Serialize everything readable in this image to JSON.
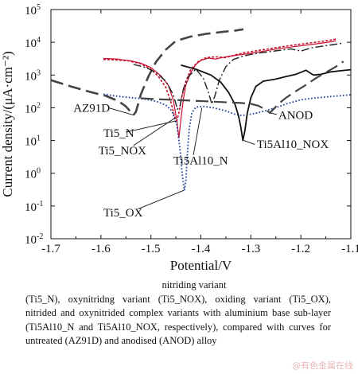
{
  "chart_data": {
    "type": "line",
    "xlabel": "Potential/V",
    "ylabel": "Current density/(μA·cm⁻²)",
    "xlim": [
      -1.7,
      -1.1
    ],
    "ylim_log10": [
      -2,
      5
    ],
    "y_scale": "log",
    "x_ticks": [
      "-1.7",
      "-1.6",
      "-1.5",
      "-1.4",
      "-1.3",
      "-1.2",
      "-1.1"
    ],
    "y_ticks": [
      {
        "base": "10",
        "exp": "5"
      },
      {
        "base": "10",
        "exp": "4"
      },
      {
        "base": "10",
        "exp": "3"
      },
      {
        "base": "10",
        "exp": "2"
      },
      {
        "base": "10",
        "exp": "1"
      },
      {
        "base": "10",
        "exp": "0"
      },
      {
        "base": "10",
        "exp": "-1"
      },
      {
        "base": "10",
        "exp": "-2"
      }
    ],
    "series": [
      {
        "name": "AZ91D",
        "color": "#444444",
        "dash": "16,7",
        "width": 2.6,
        "points": [
          [
            -1.7,
            700
          ],
          [
            -1.66,
            450
          ],
          [
            -1.62,
            300
          ],
          [
            -1.59,
            230
          ],
          [
            -1.565,
            160
          ],
          [
            -1.55,
            110
          ],
          [
            -1.535,
            60
          ],
          [
            -1.53,
            75
          ],
          [
            -1.52,
            260
          ],
          [
            -1.505,
            900
          ],
          [
            -1.49,
            2500
          ],
          [
            -1.47,
            6000
          ],
          [
            -1.45,
            11000
          ],
          [
            -1.42,
            15000
          ],
          [
            -1.39,
            18000
          ],
          [
            -1.36,
            20500
          ],
          [
            -1.33,
            23000
          ],
          [
            -1.315,
            25000
          ]
        ]
      },
      {
        "name": "Ti5_N",
        "color": "#c8102e",
        "dash": "",
        "width": 1.2,
        "points": [
          [
            -1.595,
            3200
          ],
          [
            -1.57,
            3100
          ],
          [
            -1.54,
            2700
          ],
          [
            -1.52,
            2300
          ],
          [
            -1.5,
            1700
          ],
          [
            -1.48,
            950
          ],
          [
            -1.465,
            480
          ],
          [
            -1.455,
            170
          ],
          [
            -1.448,
            40
          ],
          [
            -1.444,
            12
          ],
          [
            -1.44,
            45
          ],
          [
            -1.435,
            180
          ],
          [
            -1.43,
            500
          ],
          [
            -1.42,
            1200
          ],
          [
            -1.41,
            2100
          ],
          [
            -1.4,
            2800
          ],
          [
            -1.385,
            3300
          ],
          [
            -1.37,
            3100
          ],
          [
            -1.35,
            3600
          ],
          [
            -1.33,
            4000
          ],
          [
            -1.3,
            4600
          ],
          [
            -1.27,
            5500
          ],
          [
            -1.24,
            6500
          ],
          [
            -1.21,
            7500
          ],
          [
            -1.18,
            8500
          ],
          [
            -1.15,
            9800
          ],
          [
            -1.13,
            11000
          ]
        ]
      },
      {
        "name": "Ti5_NOX",
        "color": "#c8102e",
        "dash": "3,2",
        "width": 1.6,
        "points": [
          [
            -1.595,
            3000
          ],
          [
            -1.57,
            2900
          ],
          [
            -1.545,
            2700
          ],
          [
            -1.52,
            2200
          ],
          [
            -1.5,
            1500
          ],
          [
            -1.485,
            900
          ],
          [
            -1.47,
            420
          ],
          [
            -1.46,
            150
          ],
          [
            -1.452,
            50
          ],
          [
            -1.448,
            40
          ],
          [
            -1.443,
            80
          ],
          [
            -1.438,
            220
          ],
          [
            -1.43,
            650
          ],
          [
            -1.42,
            1500
          ],
          [
            -1.405,
            2600
          ],
          [
            -1.39,
            3400
          ],
          [
            -1.37,
            3600
          ],
          [
            -1.35,
            3400
          ],
          [
            -1.33,
            4200
          ],
          [
            -1.31,
            4900
          ],
          [
            -1.28,
            5800
          ],
          [
            -1.25,
            6800
          ],
          [
            -1.22,
            8000
          ],
          [
            -1.19,
            9200
          ],
          [
            -1.16,
            10500
          ],
          [
            -1.13,
            12500
          ]
        ]
      },
      {
        "name": "Ti5_OX",
        "color": "#1b3a9a",
        "dash": "1.6,2.4",
        "width": 1.8,
        "points": [
          [
            -1.595,
            260
          ],
          [
            -1.575,
            235
          ],
          [
            -1.555,
            215
          ],
          [
            -1.535,
            200
          ],
          [
            -1.515,
            185
          ],
          [
            -1.5,
            170
          ],
          [
            -1.485,
            150
          ],
          [
            -1.47,
            120
          ],
          [
            -1.458,
            80
          ],
          [
            -1.448,
            30
          ],
          [
            -1.442,
            6
          ],
          [
            -1.437,
            0.8
          ],
          [
            -1.433,
            0.3
          ],
          [
            -1.43,
            0.6
          ],
          [
            -1.427,
            4
          ],
          [
            -1.423,
            25
          ],
          [
            -1.418,
            70
          ],
          [
            -1.41,
            105
          ],
          [
            -1.395,
            110
          ],
          [
            -1.375,
            100
          ],
          [
            -1.35,
            80
          ],
          [
            -1.33,
            62
          ],
          [
            -1.318,
            58
          ],
          [
            -1.31,
            60
          ],
          [
            -1.29,
            68
          ],
          [
            -1.27,
            82
          ],
          [
            -1.25,
            100
          ],
          [
            -1.23,
            130
          ],
          [
            -1.2,
            175
          ],
          [
            -1.17,
            200
          ],
          [
            -1.14,
            220
          ],
          [
            -1.1,
            250
          ]
        ]
      },
      {
        "name": "Ti5Al10_N",
        "color": "#222222",
        "dash": "10,3,2,3",
        "width": 1.4,
        "points": [
          [
            -1.535,
            2100
          ],
          [
            -1.51,
            1700
          ],
          [
            -1.49,
            1200
          ],
          [
            -1.47,
            650
          ],
          [
            -1.455,
            250
          ],
          [
            -1.447,
            90
          ],
          [
            -1.442,
            110
          ],
          [
            -1.435,
            380
          ],
          [
            -1.425,
            900
          ],
          [
            -1.41,
            1500
          ],
          [
            -1.395,
            800
          ],
          [
            -1.385,
            300
          ],
          [
            -1.378,
            130
          ],
          [
            -1.372,
            230
          ],
          [
            -1.363,
            700
          ],
          [
            -1.35,
            1800
          ],
          [
            -1.335,
            3000
          ],
          [
            -1.315,
            3800
          ],
          [
            -1.295,
            4400
          ],
          [
            -1.27,
            5000
          ],
          [
            -1.245,
            5600
          ],
          [
            -1.22,
            6300
          ],
          [
            -1.2,
            5400
          ],
          [
            -1.18,
            6700
          ],
          [
            -1.16,
            7500
          ],
          [
            -1.14,
            8300
          ],
          [
            -1.115,
            9500
          ]
        ]
      },
      {
        "name": "Ti5Al10_NOX",
        "color": "#111111",
        "dash": "",
        "width": 1.8,
        "points": [
          [
            -1.44,
            2000
          ],
          [
            -1.41,
            1500
          ],
          [
            -1.38,
            1000
          ],
          [
            -1.36,
            600
          ],
          [
            -1.345,
            300
          ],
          [
            -1.332,
            130
          ],
          [
            -1.325,
            60
          ],
          [
            -1.32,
            25
          ],
          [
            -1.316,
            10
          ],
          [
            -1.312,
            20
          ],
          [
            -1.307,
            70
          ],
          [
            -1.3,
            200
          ],
          [
            -1.29,
            450
          ],
          [
            -1.275,
            650
          ],
          [
            -1.25,
            750
          ],
          [
            -1.23,
            900
          ],
          [
            -1.21,
            1050
          ],
          [
            -1.19,
            1400
          ],
          [
            -1.175,
            1000
          ],
          [
            -1.16,
            1050
          ],
          [
            -1.14,
            1250
          ],
          [
            -1.12,
            1350
          ],
          [
            -1.1,
            1450
          ]
        ]
      },
      {
        "name": "ANOD",
        "color": "#444444",
        "dash": "16,7",
        "width": 2.2,
        "points": [
          [
            -1.52,
            195
          ],
          [
            -1.48,
            180
          ],
          [
            -1.44,
            170
          ],
          [
            -1.4,
            160
          ],
          [
            -1.36,
            150
          ],
          [
            -1.32,
            140
          ],
          [
            -1.3,
            132
          ],
          [
            -1.285,
            115
          ],
          [
            -1.272,
            90
          ],
          [
            -1.262,
            70
          ],
          [
            -1.255,
            90
          ],
          [
            -1.245,
            130
          ],
          [
            -1.23,
            200
          ],
          [
            -1.21,
            320
          ],
          [
            -1.19,
            500
          ],
          [
            -1.17,
            800
          ],
          [
            -1.15,
            1200
          ],
          [
            -1.13,
            1800
          ],
          [
            -1.115,
            2600
          ]
        ]
      }
    ],
    "annotations": [
      {
        "text": "AZ91D",
        "x": -1.655,
        "y": 100
      },
      {
        "text": "Ti5_N",
        "x": -1.595,
        "y": 17
      },
      {
        "text": "Ti5_NOX",
        "x": -1.605,
        "y": 5
      },
      {
        "text": "Ti5Al10_N",
        "x": -1.455,
        "y": 2.5
      },
      {
        "text": "Ti5_OX",
        "x": -1.595,
        "y": 0.064
      },
      {
        "text": "Ti5Al10_NOX",
        "x": -1.288,
        "y": 7.8
      },
      {
        "text": "ANOD",
        "x": -1.245,
        "y": 60
      }
    ],
    "leaders": [
      {
        "from": [
          -1.585,
          100
        ],
        "to": [
          -1.535,
          60
        ]
      },
      {
        "from": [
          -1.55,
          18
        ],
        "to": [
          -1.449,
          40
        ]
      },
      {
        "from": [
          -1.535,
          7
        ],
        "to": [
          -1.451,
          50
        ]
      },
      {
        "from": [
          -1.415,
          3.6
        ],
        "to": [
          -1.398,
          100
        ]
      },
      {
        "from": [
          -1.525,
          0.082
        ],
        "to": [
          -1.434,
          0.3
        ]
      },
      {
        "from": [
          -1.292,
          7.6
        ],
        "to": [
          -1.314,
          10
        ]
      },
      {
        "from": [
          -1.248,
          62
        ],
        "to": [
          -1.262,
          70
        ]
      }
    ]
  },
  "caption": {
    "line0": "nitriding variant",
    "body": "(Ti5_N), oxynitridng variant (Ti5_NOX), oxiding variant (Ti5_OX), nitrided and oxynitrided complex variants with aluminium base sub-layer (Ti5Al10_N and Ti5Al10_NOX, respectively), compared with curves for untreated (AZ91D) and anodised (ANOD) alloy"
  },
  "watermark": "@有色金属在线"
}
